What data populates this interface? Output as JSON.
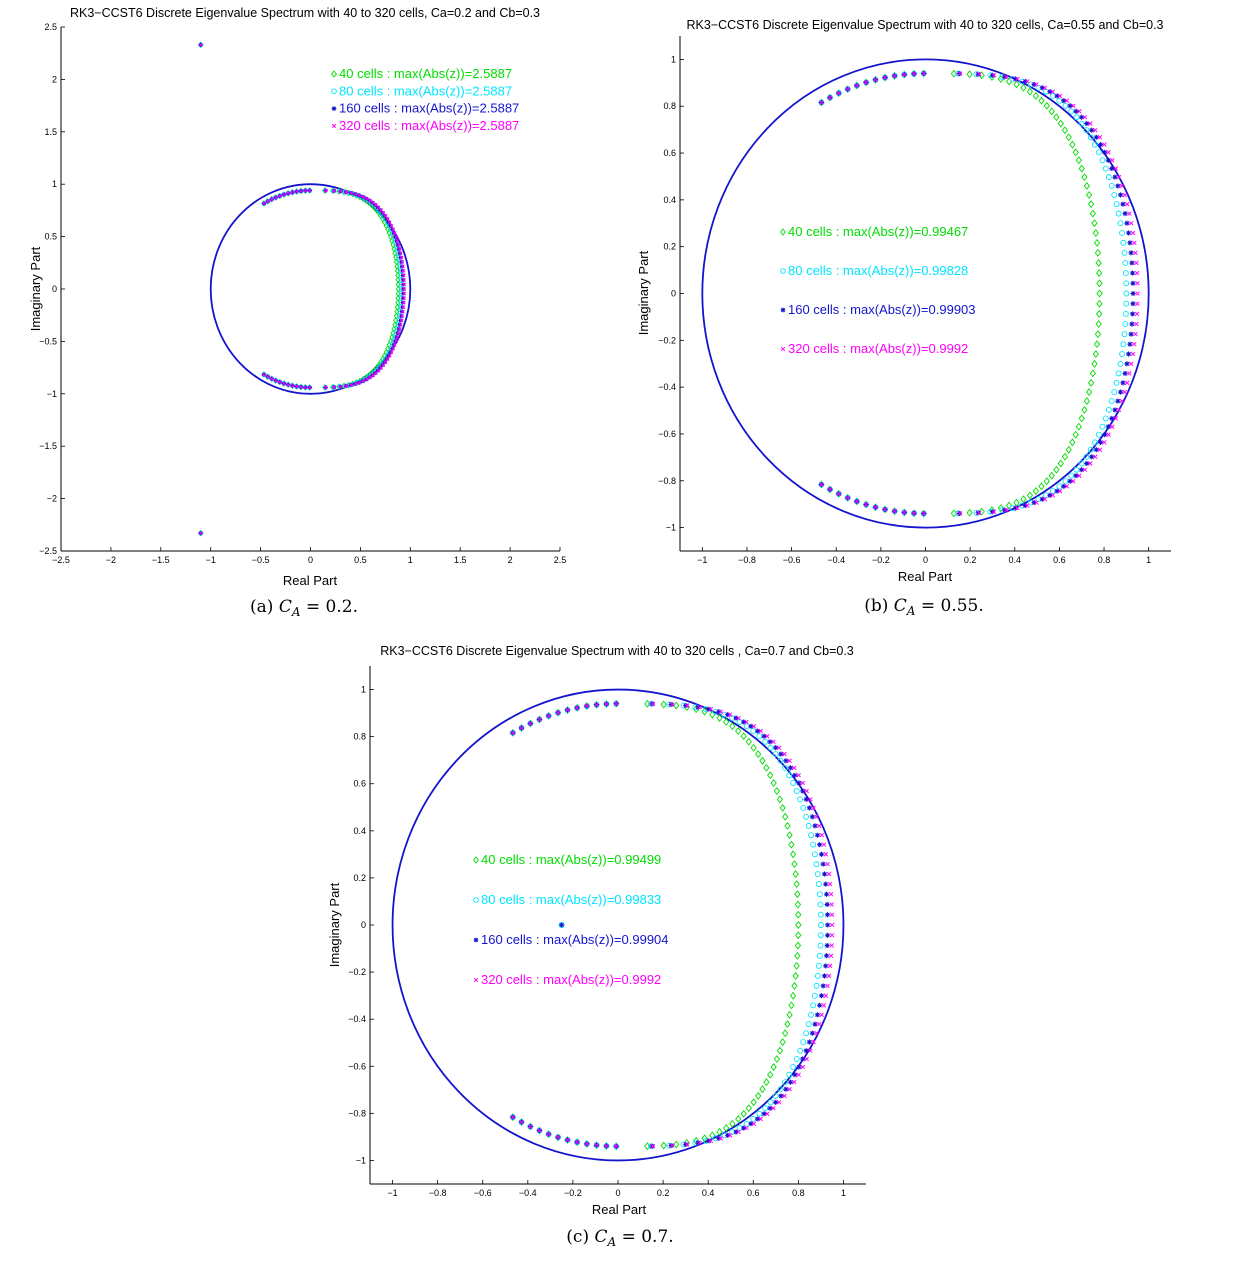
{
  "chart_data": [
    {
      "type": "scatter",
      "title": "RK3−CCST6 Discrete Eigenvalue Spectrum with 40 to 320 cells, Ca=0.2 and Cb=0.3",
      "xlabel": "Real Part",
      "ylabel": "Imaginary Part",
      "xlim": [
        -2.5,
        2.5
      ],
      "ylim": [
        -2.5,
        2.5
      ],
      "xticks": [
        "−2.5",
        "−2",
        "−1.5",
        "−1",
        "−0.5",
        "0",
        "0.5",
        "1",
        "1.5",
        "2",
        "2.5"
      ],
      "yticks": [
        "−2.5",
        "−2",
        "−1.5",
        "−1",
        "−0.5",
        "0",
        "0.5",
        "1",
        "1.5",
        "2",
        "2.5"
      ],
      "legend_position": "top-right",
      "unit_circle": true,
      "series": [
        {
          "name": "40 cells : max(Abs(z))=2.5887",
          "marker": "diamond",
          "color": "#00dd00",
          "right_x": 0.88,
          "extra_points": [
            [
              -1.1,
              2.33
            ],
            [
              -1.1,
              -2.33
            ]
          ]
        },
        {
          "name": "80 cells : max(Abs(z))=2.5887",
          "marker": "circle",
          "color": "#00e5ff",
          "right_x": 0.91,
          "extra_points": [
            [
              -1.1,
              2.33
            ],
            [
              -1.1,
              -2.33
            ]
          ]
        },
        {
          "name": "160 cells : max(Abs(z))=2.5887",
          "marker": "star",
          "color": "#1414ce",
          "right_x": 0.93,
          "extra_points": [
            [
              -1.1,
              2.33
            ],
            [
              -1.1,
              -2.33
            ]
          ]
        },
        {
          "name": "320 cells : max(Abs(z))=2.5887",
          "marker": "x",
          "color": "#ff00ff",
          "right_x": 0.94,
          "extra_points": [
            [
              -1.1,
              2.33
            ],
            [
              -1.1,
              -2.33
            ]
          ]
        }
      ],
      "caption": "(a) C_A = 0.2."
    },
    {
      "type": "scatter",
      "title": "RK3−CCST6 Discrete Eigenvalue Spectrum with 40 to 320 cells, Ca=0.55 and Cb=0.3",
      "xlabel": "Real Part",
      "ylabel": "Imaginary Part",
      "xlim": [
        -1.1,
        1.1
      ],
      "ylim": [
        -1.1,
        1.1
      ],
      "xticks": [
        "−1",
        "−0.8",
        "−0.6",
        "−0.4",
        "−0.2",
        "0",
        "0.2",
        "0.4",
        "0.6",
        "0.8",
        "1"
      ],
      "yticks": [
        "−1",
        "−0.8",
        "−0.6",
        "−0.4",
        "−0.2",
        "0",
        "0.2",
        "0.4",
        "0.6",
        "0.8",
        "1"
      ],
      "legend_position": "center-left",
      "unit_circle": true,
      "series": [
        {
          "name": "40 cells : max(Abs(z))=0.99467",
          "marker": "diamond",
          "color": "#00dd00",
          "right_x": 0.78,
          "extra_points": []
        },
        {
          "name": "80 cells : max(Abs(z))=0.99828",
          "marker": "circle",
          "color": "#00e5ff",
          "right_x": 0.9,
          "extra_points": []
        },
        {
          "name": "160 cells : max(Abs(z))=0.99903",
          "marker": "star",
          "color": "#1414ce",
          "right_x": 0.93,
          "extra_points": []
        },
        {
          "name": "320 cells : max(Abs(z))=0.9992",
          "marker": "x",
          "color": "#ff00ff",
          "right_x": 0.95,
          "extra_points": []
        }
      ],
      "caption": "(b) C_A = 0.55."
    },
    {
      "type": "scatter",
      "title": "RK3−CCST6 Discrete Eigenvalue Spectrum with 40 to 320 cells , Ca=0.7 and Cb=0.3",
      "xlabel": "Real Part",
      "ylabel": "Imaginary Part",
      "xlim": [
        -1.1,
        1.1
      ],
      "ylim": [
        -1.1,
        1.1
      ],
      "xticks": [
        "−1",
        "−0.8",
        "−0.6",
        "−0.4",
        "−0.2",
        "0",
        "0.2",
        "0.4",
        "0.6",
        "0.8",
        "1"
      ],
      "yticks": [
        "−1",
        "−0.8",
        "−0.6",
        "−0.4",
        "−0.2",
        "0",
        "0.2",
        "0.4",
        "0.6",
        "0.8",
        "1"
      ],
      "legend_position": "center-left",
      "unit_circle": true,
      "series": [
        {
          "name": "40 cells : max(Abs(z))=0.99499",
          "marker": "diamond",
          "color": "#00dd00",
          "right_x": 0.8,
          "extra_points": []
        },
        {
          "name": "80 cells : max(Abs(z))=0.99833",
          "marker": "circle",
          "color": "#00e5ff",
          "right_x": 0.9,
          "extra_points": [
            [
              -0.25,
              0
            ]
          ]
        },
        {
          "name": "160 cells : max(Abs(z))=0.99904",
          "marker": "star",
          "color": "#1414ce",
          "right_x": 0.93,
          "extra_points": [
            [
              -0.25,
              0
            ]
          ]
        },
        {
          "name": "320 cells : max(Abs(z))=0.9992",
          "marker": "x",
          "color": "#ff00ff",
          "right_x": 0.95,
          "extra_points": []
        }
      ],
      "caption": "(c) C_A = 0.7."
    }
  ]
}
